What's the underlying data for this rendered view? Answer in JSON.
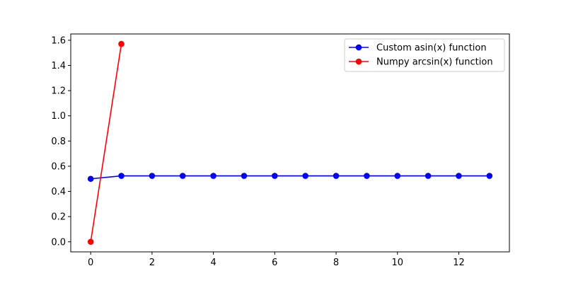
{
  "chart_data": {
    "type": "line",
    "title": "",
    "xlabel": "",
    "ylabel": "",
    "xlim": [
      -0.65,
      13.65
    ],
    "ylim": [
      -0.08,
      1.65
    ],
    "x_ticks": [
      0,
      2,
      4,
      6,
      8,
      10,
      12
    ],
    "x_tick_labels": [
      "0",
      "2",
      "4",
      "6",
      "8",
      "10",
      "12"
    ],
    "y_ticks": [
      0.0,
      0.2,
      0.4,
      0.6,
      0.8,
      1.0,
      1.2,
      1.4,
      1.6
    ],
    "y_tick_labels": [
      "0.0",
      "0.2",
      "0.4",
      "0.6",
      "0.8",
      "1.0",
      "1.2",
      "1.4",
      "1.6"
    ],
    "grid": false,
    "legend_position": "top-right",
    "series": [
      {
        "name": "Custom asin(x) function",
        "color": "#0000ff",
        "marker": "circle",
        "x": [
          0,
          1,
          2,
          3,
          4,
          5,
          6,
          7,
          8,
          9,
          10,
          11,
          12,
          13
        ],
        "y": [
          0.5,
          0.5236,
          0.5236,
          0.5236,
          0.5236,
          0.5236,
          0.5236,
          0.5236,
          0.5236,
          0.5236,
          0.5236,
          0.5236,
          0.5236,
          0.5236
        ]
      },
      {
        "name": "Numpy arcsin(x) function",
        "color": "#ff0000",
        "marker": "circle",
        "x": [
          0,
          1
        ],
        "y": [
          0.0,
          1.5708
        ]
      }
    ]
  }
}
